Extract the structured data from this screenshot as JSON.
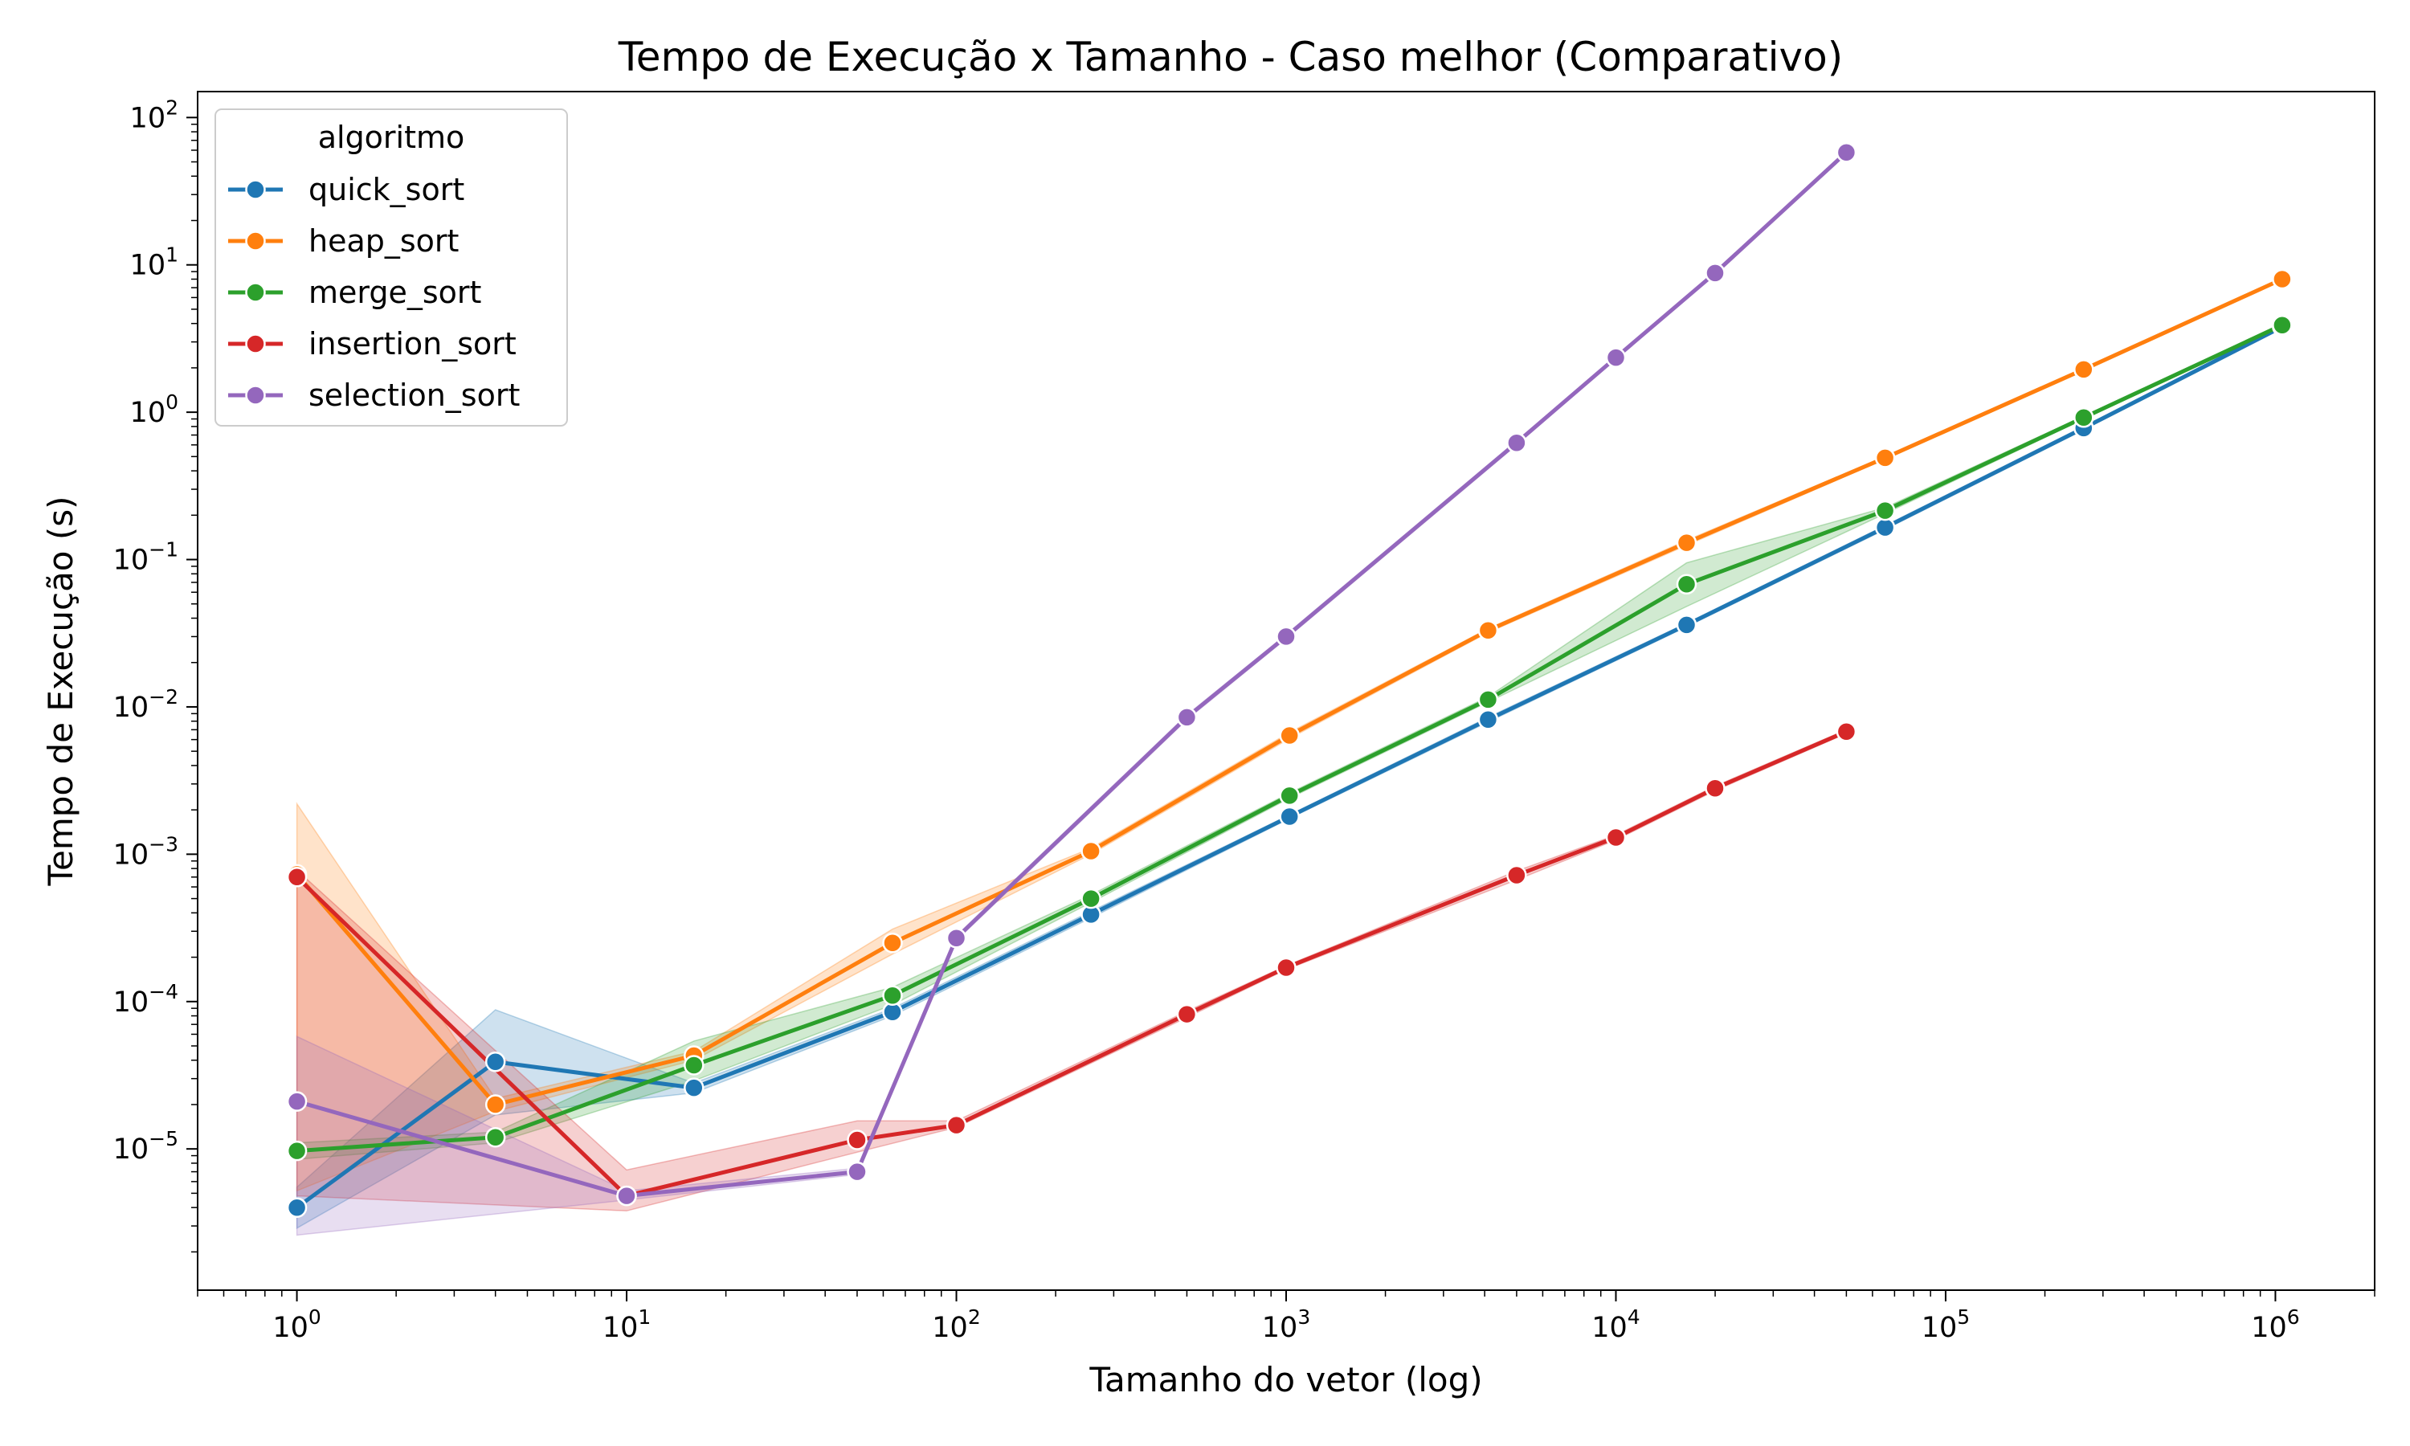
{
  "chart_data": {
    "type": "line",
    "title": "Tempo de Execução x Tamanho - Caso melhor (Comparativo)",
    "xlabel": "Tamanho do vetor (log)",
    "ylabel": "Tempo de Execução (s)",
    "xscale": "log",
    "yscale": "log",
    "xlim": [
      0.5,
      2000000
    ],
    "ylim": [
      1.1e-06,
      150
    ],
    "grid": false,
    "x_ticks": [
      {
        "value": 1,
        "base": "10",
        "exp": "0"
      },
      {
        "value": 10,
        "base": "10",
        "exp": "1"
      },
      {
        "value": 100,
        "base": "10",
        "exp": "2"
      },
      {
        "value": 1000,
        "base": "10",
        "exp": "3"
      },
      {
        "value": 10000,
        "base": "10",
        "exp": "4"
      },
      {
        "value": 100000,
        "base": "10",
        "exp": "5"
      },
      {
        "value": 1000000,
        "base": "10",
        "exp": "6"
      }
    ],
    "y_ticks": [
      {
        "value": 1e-05,
        "base": "10",
        "exp": "−5"
      },
      {
        "value": 0.0001,
        "base": "10",
        "exp": "−4"
      },
      {
        "value": 0.001,
        "base": "10",
        "exp": "−3"
      },
      {
        "value": 0.01,
        "base": "10",
        "exp": "−2"
      },
      {
        "value": 0.1,
        "base": "10",
        "exp": "−1"
      },
      {
        "value": 1,
        "base": "10",
        "exp": "0"
      },
      {
        "value": 10,
        "base": "10",
        "exp": "1"
      },
      {
        "value": 100,
        "base": "10",
        "exp": "2"
      }
    ],
    "legend": {
      "title": "algoritmo",
      "placement": "top-left"
    },
    "series": [
      {
        "name": "quick_sort",
        "color": "#1f77b4",
        "x": [
          1,
          4,
          16,
          64,
          256,
          1024,
          4096,
          16384,
          65536,
          262144,
          1048576
        ],
        "y": [
          4e-06,
          3.9e-05,
          2.6e-05,
          8.5e-05,
          0.00039,
          0.0018,
          0.0082,
          0.036,
          0.165,
          0.78,
          3.8
        ],
        "lower": [
          2.9e-06,
          1.7e-05,
          2.4e-05,
          8e-05,
          0.00037,
          0.00175,
          0.0079,
          0.035,
          0.16,
          0.76,
          3.7
        ],
        "upper": [
          5.5e-06,
          8.8e-05,
          2.8e-05,
          9e-05,
          0.00041,
          0.00185,
          0.0085,
          0.037,
          0.17,
          0.8,
          3.9
        ]
      },
      {
        "name": "heap_sort",
        "color": "#ff7f0e",
        "x": [
          1,
          4,
          16,
          64,
          256,
          1024,
          4096,
          16384,
          65536,
          262144,
          1048576
        ],
        "y": [
          0.00073,
          2e-05,
          4.3e-05,
          0.00025,
          0.00105,
          0.0064,
          0.033,
          0.13,
          0.49,
          1.95,
          8.0
        ],
        "lower": [
          5.2e-06,
          1.8e-05,
          4e-05,
          0.00021,
          0.001,
          0.0061,
          0.032,
          0.125,
          0.48,
          1.9,
          7.9
        ],
        "upper": [
          0.0022,
          2.2e-05,
          4.6e-05,
          0.00031,
          0.0011,
          0.0067,
          0.034,
          0.135,
          0.5,
          2.0,
          8.1
        ]
      },
      {
        "name": "merge_sort",
        "color": "#2ca02c",
        "x": [
          1,
          4,
          16,
          64,
          256,
          1024,
          4096,
          16384,
          65536,
          262144,
          1048576
        ],
        "y": [
          9.7e-06,
          1.2e-05,
          3.7e-05,
          0.00011,
          0.0005,
          0.0025,
          0.0112,
          0.068,
          0.215,
          0.92,
          3.9
        ],
        "lower": [
          8.5e-06,
          1.1e-05,
          2.9e-05,
          9.5e-05,
          0.00047,
          0.0024,
          0.0108,
          0.048,
          0.205,
          0.9,
          3.8
        ],
        "upper": [
          1.1e-05,
          1.3e-05,
          5.4e-05,
          0.000125,
          0.00053,
          0.0026,
          0.0117,
          0.095,
          0.225,
          0.94,
          4.0
        ]
      },
      {
        "name": "insertion_sort",
        "color": "#d62728",
        "x": [
          1,
          10,
          50,
          100,
          500,
          1000,
          5000,
          10000,
          20000,
          50000
        ],
        "y": [
          0.0007,
          4.8e-06,
          1.15e-05,
          1.45e-05,
          8.2e-05,
          0.00017,
          0.00072,
          0.0013,
          0.0028,
          0.0068
        ],
        "lower": [
          4.8e-06,
          3.8e-06,
          9.5e-06,
          1.4e-05,
          7.8e-05,
          0.000165,
          0.00067,
          0.00125,
          0.0027,
          0.0066
        ],
        "upper": [
          0.00078,
          7.2e-06,
          1.55e-05,
          1.55e-05,
          8.6e-05,
          0.000175,
          0.00077,
          0.00135,
          0.0029,
          0.007
        ]
      },
      {
        "name": "selection_sort",
        "color": "#9467bd",
        "x": [
          1,
          10,
          50,
          100,
          500,
          1000,
          5000,
          10000,
          20000,
          50000
        ],
        "y": [
          2.1e-05,
          4.8e-06,
          7e-06,
          0.00027,
          0.0085,
          0.03,
          0.62,
          2.35,
          8.8,
          58
        ],
        "lower": [
          2.6e-06,
          4.5e-06,
          6.7e-06,
          0.00026,
          0.0082,
          0.029,
          0.6,
          2.3,
          8.6,
          57
        ],
        "upper": [
          5.8e-05,
          5.2e-06,
          7.4e-06,
          0.00028,
          0.0088,
          0.031,
          0.64,
          2.4,
          9.0,
          59
        ]
      }
    ]
  }
}
